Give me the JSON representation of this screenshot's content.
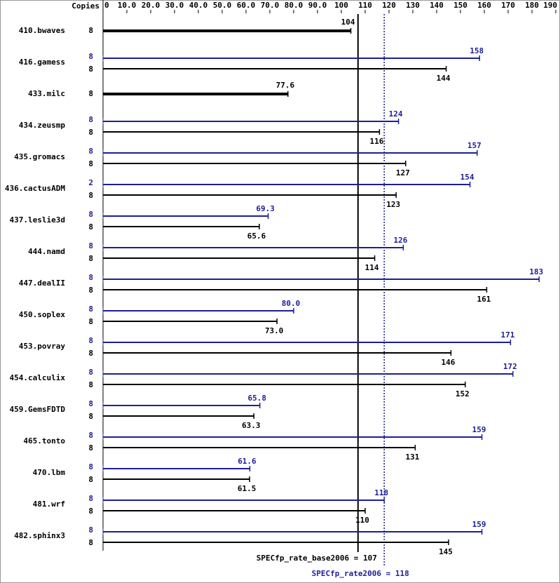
{
  "chart_data": {
    "type": "bar",
    "orientation": "horizontal",
    "copies_label": "Copies",
    "categories": [
      "410.bwaves",
      "416.gamess",
      "433.milc",
      "434.zeusmp",
      "435.gromacs",
      "436.cactusADM",
      "437.leslie3d",
      "444.namd",
      "447.dealII",
      "450.soplex",
      "453.povray",
      "454.calculix",
      "459.GemsFDTD",
      "465.tonto",
      "470.lbm",
      "481.wrf",
      "482.sphinx3"
    ],
    "series": [
      {
        "color": "#1e1e96",
        "copies": [
          null,
          8,
          null,
          8,
          8,
          2,
          8,
          8,
          8,
          8,
          8,
          8,
          8,
          8,
          8,
          8,
          8
        ],
        "values": [
          null,
          158,
          null,
          124,
          157,
          154,
          69.3,
          126,
          183,
          80,
          171,
          172,
          65.8,
          159,
          61.6,
          118,
          159
        ],
        "value_labels": [
          null,
          "158",
          null,
          "124",
          "157",
          "154",
          "69.3",
          "126",
          "183",
          "80.0",
          "171",
          "172",
          "65.8",
          "159",
          "61.6",
          "118",
          "159"
        ]
      },
      {
        "color": "#000000",
        "copies": [
          8,
          8,
          8,
          8,
          8,
          8,
          8,
          8,
          8,
          8,
          8,
          8,
          8,
          8,
          8,
          8,
          8
        ],
        "values": [
          104,
          144,
          77.6,
          116,
          127,
          123,
          65.6,
          114,
          161,
          73,
          146,
          152,
          63.3,
          131,
          61.5,
          110,
          145
        ],
        "value_labels": [
          "104",
          "144",
          "77.6",
          "116",
          "127",
          "123",
          "65.6",
          "114",
          "161",
          "73.0",
          "146",
          "152",
          "63.3",
          "131",
          "61.5",
          "110",
          "145"
        ]
      }
    ],
    "xlim": [
      0,
      190
    ],
    "xticks": [
      0,
      {
        "value": 10,
        "label": "10.0"
      },
      {
        "value": 20,
        "label": "20.0"
      },
      {
        "value": 30,
        "label": "30.0"
      },
      {
        "value": 40,
        "label": "40.0"
      },
      {
        "value": 50,
        "label": "50.0"
      },
      {
        "value": 60,
        "label": "60.0"
      },
      {
        "value": 70,
        "label": "70.0"
      },
      {
        "value": 80,
        "label": "80.0"
      },
      {
        "value": 90,
        "label": "90.0"
      },
      100,
      110,
      120,
      130,
      140,
      150,
      160,
      170,
      180,
      190
    ],
    "reference_lines": [
      {
        "label": "SPECfp_rate_base2006 = 107",
        "value": 107,
        "color": "#000000",
        "style": "solid"
      },
      {
        "label": "SPECfp_rate2006 = 118",
        "value": 118,
        "color": "#1e1e96",
        "style": "dotted"
      }
    ]
  }
}
